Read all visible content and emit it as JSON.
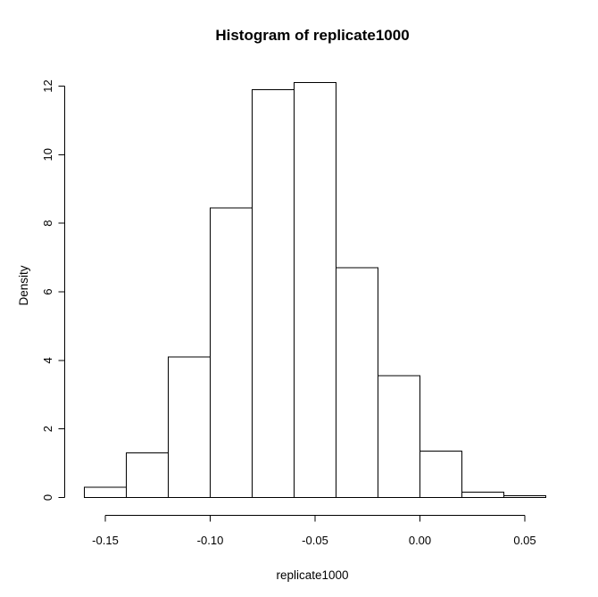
{
  "window": {
    "background": "#ffffff"
  },
  "chart_data": {
    "type": "bar",
    "subtype": "histogram",
    "title": "Histogram of replicate1000",
    "xlabel": "replicate1000",
    "ylabel": "Density",
    "bin_width": 0.02,
    "bin_edges": [
      -0.16,
      -0.14,
      -0.12,
      -0.1,
      -0.08,
      -0.06,
      -0.04,
      -0.02,
      0.0,
      0.02,
      0.04,
      0.06
    ],
    "densities": [
      0.3,
      1.3,
      4.1,
      8.45,
      11.9,
      12.1,
      6.7,
      3.55,
      1.35,
      0.15,
      0.05
    ],
    "x_ticks": [
      {
        "value": -0.15,
        "label": "-0.15"
      },
      {
        "value": -0.1,
        "label": "-0.10"
      },
      {
        "value": -0.05,
        "label": "-0.05"
      },
      {
        "value": 0.0,
        "label": "0.00"
      },
      {
        "value": 0.05,
        "label": "0.05"
      }
    ],
    "y_ticks": [
      {
        "value": 0,
        "label": "0"
      },
      {
        "value": 2,
        "label": "2"
      },
      {
        "value": 4,
        "label": "4"
      },
      {
        "value": 6,
        "label": "6"
      },
      {
        "value": 8,
        "label": "8"
      },
      {
        "value": 10,
        "label": "10"
      },
      {
        "value": 12,
        "label": "12"
      }
    ],
    "xlim": [
      -0.16,
      0.06
    ],
    "ylim": [
      0,
      12.1
    ],
    "grid": false,
    "legend_position": "none",
    "colors": {
      "bar_fill": "#ffffff",
      "bar_border": "#000000",
      "axis": "#000000",
      "text": "#000000",
      "background": "#ffffff"
    }
  }
}
